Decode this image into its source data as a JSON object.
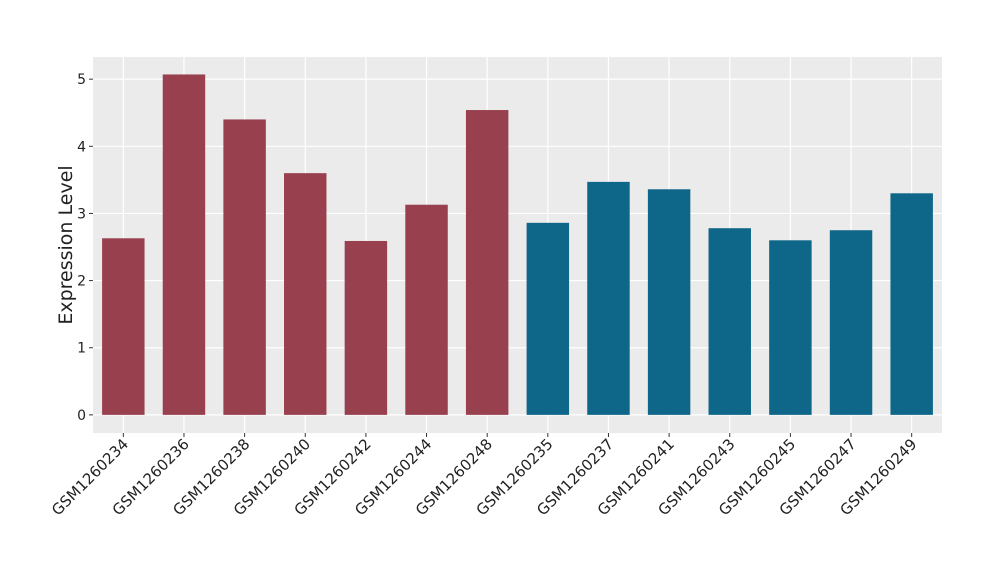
{
  "chart_data": {
    "type": "bar",
    "y_label": "Expression Level",
    "categories": [
      "GSM1260234",
      "GSM1260236",
      "GSM1260238",
      "GSM1260240",
      "GSM1260242",
      "GSM1260244",
      "GSM1260248",
      "GSM1260235",
      "GSM1260237",
      "GSM1260241",
      "GSM1260243",
      "GSM1260245",
      "GSM1260247",
      "GSM1260249"
    ],
    "values": [
      2.63,
      5.07,
      4.4,
      3.6,
      2.59,
      3.13,
      4.54,
      2.86,
      3.47,
      3.36,
      2.78,
      2.6,
      2.75,
      3.3
    ],
    "colors": [
      "#98404e",
      "#98404e",
      "#98404e",
      "#98404e",
      "#98404e",
      "#98404e",
      "#98404e",
      "#0e6688",
      "#0e6688",
      "#0e6688",
      "#0e6688",
      "#0e6688",
      "#0e6688",
      "#0e6688"
    ],
    "ylim": [
      -0.27,
      5.33
    ],
    "yticks": [
      0,
      1,
      2,
      3,
      4,
      5
    ],
    "grid": true
  }
}
